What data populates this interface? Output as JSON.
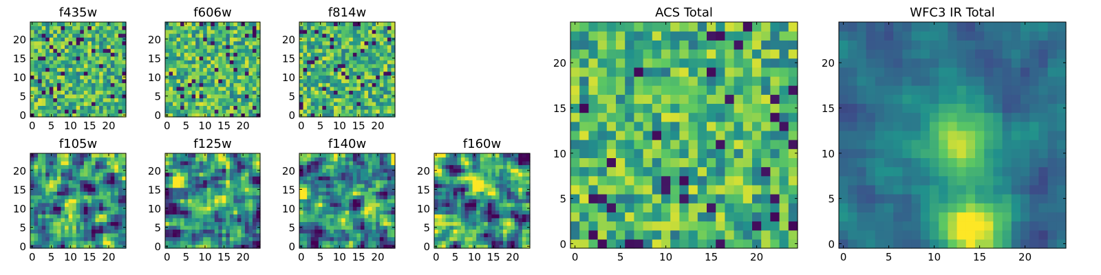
{
  "chart_data": {
    "type": "heatmap",
    "colormap": [
      "#440154",
      "#3b528b",
      "#21918c",
      "#5ec962",
      "#fde725"
    ],
    "pixel_grid": [
      25,
      25
    ],
    "panels": [
      {
        "id": "f435w",
        "title": "f435w",
        "xlim": [
          0,
          24
        ],
        "ylim": [
          0,
          24
        ],
        "xticks": [
          "0",
          "5",
          "10",
          "15",
          "20"
        ],
        "yticks": [
          "0",
          "5",
          "10",
          "15",
          "20"
        ],
        "pattern": "noise",
        "seed": 11
      },
      {
        "id": "f606w",
        "title": "f606w",
        "xlim": [
          0,
          24
        ],
        "ylim": [
          0,
          24
        ],
        "xticks": [
          "0",
          "5",
          "10",
          "15",
          "20"
        ],
        "yticks": [
          "0",
          "5",
          "10",
          "15",
          "20"
        ],
        "pattern": "noise",
        "seed": 23
      },
      {
        "id": "f814w",
        "title": "f814w",
        "xlim": [
          0,
          24
        ],
        "ylim": [
          0,
          24
        ],
        "xticks": [
          "0",
          "5",
          "10",
          "15",
          "20"
        ],
        "yticks": [
          "0",
          "5",
          "10",
          "15",
          "20"
        ],
        "pattern": "noise",
        "seed": 37
      },
      {
        "id": "f105w",
        "title": "f105w",
        "xlim": [
          0,
          24
        ],
        "ylim": [
          0,
          24
        ],
        "xticks": [
          "0",
          "5",
          "10",
          "15",
          "20"
        ],
        "yticks": [
          "0",
          "5",
          "10",
          "15",
          "20"
        ],
        "pattern": "smooth",
        "seed": 41
      },
      {
        "id": "f125w",
        "title": "f125w",
        "xlim": [
          0,
          24
        ],
        "ylim": [
          0,
          24
        ],
        "xticks": [
          "0",
          "5",
          "10",
          "15",
          "20"
        ],
        "yticks": [
          "0",
          "5",
          "10",
          "15",
          "20"
        ],
        "pattern": "smooth",
        "seed": 53
      },
      {
        "id": "f140w",
        "title": "f140w",
        "xlim": [
          0,
          24
        ],
        "ylim": [
          0,
          24
        ],
        "xticks": [
          "0",
          "5",
          "10",
          "15",
          "20"
        ],
        "yticks": [
          "0",
          "5",
          "10",
          "15",
          "20"
        ],
        "pattern": "smooth",
        "seed": 67
      },
      {
        "id": "f160w",
        "title": "f160w",
        "xlim": [
          0,
          24
        ],
        "ylim": [
          0,
          24
        ],
        "xticks": [
          "0",
          "5",
          "10",
          "15",
          "20"
        ],
        "yticks": [
          "0",
          "5",
          "10",
          "15",
          "20"
        ],
        "pattern": "smooth",
        "seed": 79
      },
      {
        "id": "acs-total",
        "title": "ACS Total",
        "xlim": [
          0,
          24
        ],
        "ylim": [
          0,
          24
        ],
        "xticks": [
          "0",
          "5",
          "10",
          "15",
          "20"
        ],
        "yticks": [
          "0",
          "5",
          "10",
          "15",
          "20"
        ],
        "pattern": "noise",
        "seed": 97
      },
      {
        "id": "wfc3-ir-total",
        "title": "WFC3 IR Total",
        "xlim": [
          0,
          24
        ],
        "ylim": [
          0,
          24
        ],
        "xticks": [
          "0",
          "5",
          "10",
          "15",
          "20"
        ],
        "yticks": [
          "0",
          "5",
          "10",
          "15",
          "20"
        ],
        "pattern": "source",
        "source_center": [
          12.5,
          11.5
        ],
        "seed": 103
      }
    ]
  }
}
